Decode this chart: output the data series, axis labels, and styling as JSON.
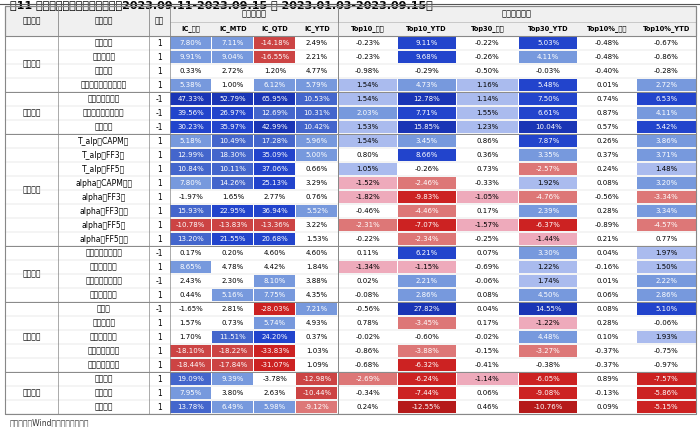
{
  "title": "图11 上周及年初至今的因子表现（2023.09.11-2023.09.15 和 2023.01.03-2023.09.15）",
  "source_note": "资料来源：Wind，海通证券研究所",
  "sub_headers": [
    "IC_上周",
    "IC_MTD",
    "IC_QTD",
    "IC_YTD",
    "Top10_上周",
    "Top10_YTD",
    "Top30_上周",
    "Top30_YTD",
    "Top10%_上周",
    "Top10%_YTD"
  ],
  "sections": [
    {
      "name": "收益指标",
      "rows": [
        [
          "夏普比率",
          "1",
          "7.80%",
          "7.11%",
          "-14.18%",
          "2.49%",
          "-0.23%",
          "9.11%",
          "-0.22%",
          "5.03%",
          "-0.48%",
          "-0.67%"
        ],
        [
          "卡瑞滋比率",
          "1",
          "9.91%",
          "9.04%",
          "-16.55%",
          "2.21%",
          "-0.23%",
          "9.68%",
          "-0.26%",
          "4.11%",
          "-0.48%",
          "-0.86%"
        ],
        [
          "累计收益",
          "1",
          "0.33%",
          "2.72%",
          "1.20%",
          "4.77%",
          "-0.98%",
          "-0.29%",
          "-0.50%",
          "-0.03%",
          "-0.40%",
          "-0.28%"
        ],
        [
          "超额收益稳定性（月）",
          "1",
          "5.38%",
          "1.00%",
          "6.12%",
          "5.79%",
          "1.54%",
          "4.73%",
          "1.16%",
          "5.48%",
          "0.01%",
          "2.72%"
        ]
      ]
    },
    {
      "name": "风险指标",
      "rows": [
        [
          "年化下行波动率",
          "-1",
          "47.33%",
          "52.79%",
          "65.95%",
          "10.53%",
          "1.54%",
          "12.78%",
          "1.14%",
          "7.50%",
          "0.74%",
          "6.53%"
        ],
        [
          "下行损益比例（月）",
          "-1",
          "39.56%",
          "26.97%",
          "12.69%",
          "10.31%",
          "2.03%",
          "7.71%",
          "1.55%",
          "6.61%",
          "0.87%",
          "4.11%"
        ],
        [
          "最大回撤",
          "-1",
          "30.23%",
          "35.97%",
          "42.99%",
          "10.42%",
          "1.53%",
          "15.85%",
          "1.23%",
          "10.04%",
          "0.57%",
          "5.42%"
        ]
      ]
    },
    {
      "name": "选股能力",
      "rows": [
        [
          "T_alp（CAPM）",
          "1",
          "5.18%",
          "10.49%",
          "17.28%",
          "5.96%",
          "1.54%",
          "3.45%",
          "0.86%",
          "7.87%",
          "0.26%",
          "3.86%"
        ],
        [
          "T_alp（FF3）",
          "1",
          "12.99%",
          "18.30%",
          "35.09%",
          "5.00%",
          "0.80%",
          "8.66%",
          "0.36%",
          "3.35%",
          "0.37%",
          "3.71%"
        ],
        [
          "T_alp（FF5）",
          "1",
          "10.84%",
          "10.11%",
          "37.06%",
          "0.66%",
          "1.05%",
          "-0.26%",
          "0.73%",
          "-2.57%",
          "0.24%",
          "1.48%"
        ],
        [
          "alpha（CAPM月）",
          "1",
          "7.80%",
          "14.26%",
          "25.13%",
          "3.29%",
          "-1.52%",
          "-2.46%",
          "-0.33%",
          "1.92%",
          "0.08%",
          "3.20%"
        ],
        [
          "alpha（FF3）",
          "1",
          "-1.97%",
          "1.65%",
          "2.77%",
          "0.76%",
          "-1.82%",
          "-9.83%",
          "-1.05%",
          "-4.76%",
          "-0.56%",
          "-3.34%"
        ],
        [
          "alpha（FF3月）",
          "1",
          "15.93%",
          "22.95%",
          "36.94%",
          "5.52%",
          "-0.46%",
          "-4.46%",
          "0.17%",
          "2.39%",
          "0.28%",
          "3.34%"
        ],
        [
          "alpha（FF5）",
          "1",
          "-10.78%",
          "-13.83%",
          "-13.36%",
          "3.22%",
          "-2.31%",
          "-7.07%",
          "-1.57%",
          "-6.37%",
          "-0.89%",
          "-4.57%"
        ],
        [
          "alpha（FF5月）",
          "1",
          "13.20%",
          "21.55%",
          "20.68%",
          "1.53%",
          "-0.22%",
          "-2.34%",
          "-0.25%",
          "-1.44%",
          "0.21%",
          "0.77%"
        ]
      ]
    },
    {
      "name": "基本信息",
      "rows": [
        [
          "基金规模（合计）",
          "-1",
          "0.17%",
          "0.20%",
          "4.60%",
          "4.60%",
          "0.11%",
          "6.21%",
          "0.07%",
          "3.30%",
          "0.04%",
          "1.97%"
        ],
        [
          "基金规模增速",
          "1",
          "8.65%",
          "4.78%",
          "4.42%",
          "1.84%",
          "-1.34%",
          "-1.15%",
          "-0.69%",
          "1.22%",
          "-0.16%",
          "1.50%"
        ],
        [
          "基金份额（合计）",
          "-1",
          "2.43%",
          "2.30%",
          "8.10%",
          "3.88%",
          "0.02%",
          "2.21%",
          "-0.06%",
          "1.74%",
          "0.01%",
          "2.22%"
        ],
        [
          "机构投资占比",
          "1",
          "0.44%",
          "5.16%",
          "7.75%",
          "4.35%",
          "-0.08%",
          "2.86%",
          "0.08%",
          "4.50%",
          "0.06%",
          "2.86%"
        ]
      ]
    },
    {
      "name": "持仓风格",
      "rows": [
        [
          "流动度",
          "-1",
          "-1.65%",
          "2.81%",
          "-28.03%",
          "7.21%",
          "-0.56%",
          "27.82%",
          "0.04%",
          "14.55%",
          "0.08%",
          "5.10%"
        ],
        [
          "持股集中度",
          "1",
          "1.57%",
          "0.73%",
          "5.74%",
          "4.93%",
          "0.78%",
          "-3.45%",
          "0.17%",
          "-1.22%",
          "0.28%",
          "-0.06%"
        ],
        [
          "重仓股存余率",
          "1",
          "1.70%",
          "11.51%",
          "24.20%",
          "0.37%",
          "-0.02%",
          "-0.60%",
          "-0.02%",
          "4.48%",
          "0.10%",
          "1.93%"
        ],
        [
          "换手率（双边）",
          "1",
          "-18.10%",
          "-18.22%",
          "-33.83%",
          "1.03%",
          "-0.86%",
          "-3.88%",
          "-0.15%",
          "-3.27%",
          "-0.37%",
          "-0.75%"
        ],
        [
          "换手率（单边）",
          "1",
          "-18.44%",
          "-17.84%",
          "-31.07%",
          "1.09%",
          "-0.68%",
          "-6.32%",
          "-0.41%",
          "-0.38%",
          "-0.37%",
          "-0.97%"
        ]
      ]
    },
    {
      "name": "收益来源",
      "rows": [
        [
          "行业配置",
          "1",
          "19.09%",
          "9.39%",
          "-3.78%",
          "-12.98%",
          "-2.69%",
          "-6.24%",
          "-1.14%",
          "-6.05%",
          "0.89%",
          "-7.57%"
        ],
        [
          "选股能力",
          "1",
          "7.95%",
          "3.80%",
          "2.63%",
          "-10.44%",
          "-0.34%",
          "-7.44%",
          "0.06%",
          "-9.08%",
          "-0.13%",
          "-5.86%"
        ],
        [
          "交易能力",
          "1",
          "13.78%",
          "6.49%",
          "5.98%",
          "-9.12%",
          "0.24%",
          "-12.55%",
          "0.46%",
          "-10.76%",
          "0.09%",
          "-5.15%"
        ]
      ]
    }
  ]
}
